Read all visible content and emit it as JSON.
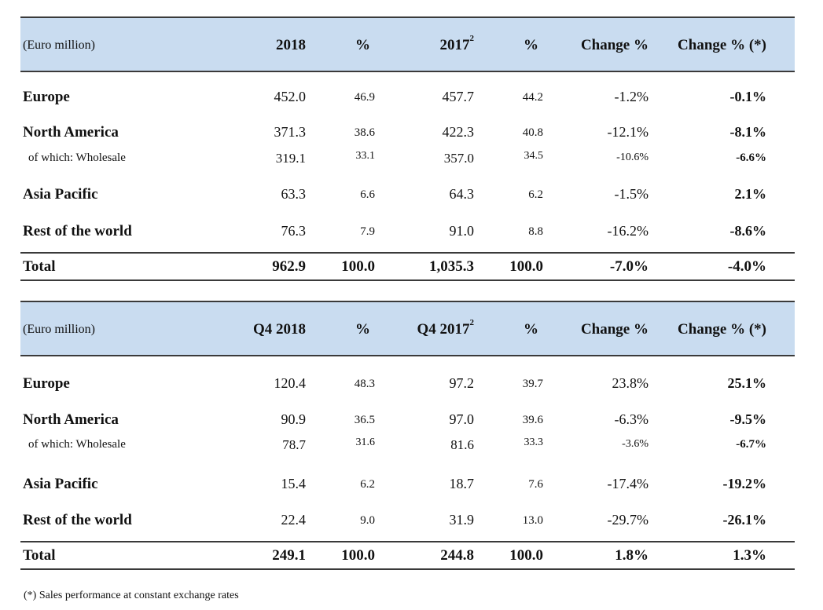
{
  "tables": [
    {
      "header": {
        "unit": "(Euro million)",
        "col_year": "2018",
        "col_pct": "%",
        "col_prev_year": "2017",
        "col_prev_sup": "2",
        "col_prev_pct": "%",
        "col_change": "Change %",
        "col_change_const": "Change % (*)"
      },
      "rows": [
        {
          "label": "Europe",
          "v1": "452.0",
          "p1": "46.9",
          "v2": "457.7",
          "p2": "44.2",
          "ch": "-1.2%",
          "cc": "-0.1%"
        },
        {
          "label": "North America",
          "v1": "371.3",
          "p1": "38.6",
          "v2": "422.3",
          "p2": "40.8",
          "ch": "-12.1%",
          "cc": "-8.1%"
        },
        {
          "label": "of which: Wholesale",
          "v1": "319.1",
          "p1": "33.1",
          "v2": "357.0",
          "p2": "34.5",
          "ch": "-10.6%",
          "cc": "-6.6%"
        },
        {
          "label": "Asia Pacific",
          "v1": "63.3",
          "p1": "6.6",
          "v2": "64.3",
          "p2": "6.2",
          "ch": "-1.5%",
          "cc": "2.1%"
        },
        {
          "label": "Rest of the world",
          "v1": "76.3",
          "p1": "7.9",
          "v2": "91.0",
          "p2": "8.8",
          "ch": "-16.2%",
          "cc": "-8.6%"
        }
      ],
      "total": {
        "label": "Total",
        "v1": "962.9",
        "p1": "100.0",
        "v2": "1,035.3",
        "p2": "100.0",
        "ch": "-7.0%",
        "cc": "-4.0%"
      }
    },
    {
      "header": {
        "unit": "(Euro million)",
        "col_year": "Q4 2018",
        "col_pct": "%",
        "col_prev_year": "Q4 2017",
        "col_prev_sup": "2",
        "col_prev_pct": "%",
        "col_change": "Change %",
        "col_change_const": "Change % (*)"
      },
      "rows": [
        {
          "label": "Europe",
          "v1": "120.4",
          "p1": "48.3",
          "v2": "97.2",
          "p2": "39.7",
          "ch": "23.8%",
          "cc": "25.1%"
        },
        {
          "label": "North America",
          "v1": "90.9",
          "p1": "36.5",
          "v2": "97.0",
          "p2": "39.6",
          "ch": "-6.3%",
          "cc": "-9.5%"
        },
        {
          "label": "of which: Wholesale",
          "v1": "78.7",
          "p1": "31.6",
          "v2": "81.6",
          "p2": "33.3",
          "ch": "-3.6%",
          "cc": "-6.7%"
        },
        {
          "label": "Asia Pacific",
          "v1": "15.4",
          "p1": "6.2",
          "v2": "18.7",
          "p2": "7.6",
          "ch": "-17.4%",
          "cc": "-19.2%"
        },
        {
          "label": "Rest of the world",
          "v1": "22.4",
          "p1": "9.0",
          "v2": "31.9",
          "p2": "13.0",
          "ch": "-29.7%",
          "cc": "-26.1%"
        }
      ],
      "total": {
        "label": "Total",
        "v1": "249.1",
        "p1": "100.0",
        "v2": "244.8",
        "p2": "100.0",
        "ch": "1.8%",
        "cc": "1.3%"
      }
    }
  ],
  "footnote": "(*) Sales performance at constant exchange rates",
  "colors": {
    "header_bg": "#c9dcf0",
    "rule": "#3a3a3a",
    "text": "#111111"
  }
}
